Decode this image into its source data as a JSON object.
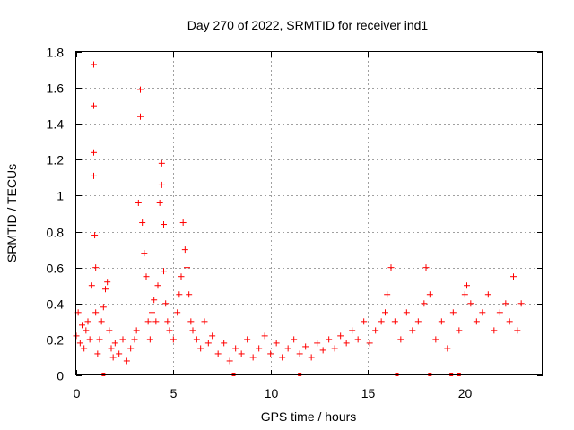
{
  "chart_data": {
    "type": "scatter",
    "title": "Day 270 of 2022, SRMTID for receiver ind1",
    "xlabel": "GPS time / hours",
    "ylabel": "SRMTID / TECUs",
    "xlim": [
      0,
      24
    ],
    "ylim": [
      0,
      1.8
    ],
    "xticks": [
      0,
      5,
      10,
      15,
      20
    ],
    "xtick_labels": [
      "0",
      "5",
      "10",
      "15",
      "20"
    ],
    "yticks": [
      0,
      0.2,
      0.4,
      0.6,
      0.8,
      1,
      1.2,
      1.4,
      1.6,
      1.8
    ],
    "ytick_labels": [
      "0",
      "0.2",
      "0.4",
      "0.6",
      "0.8",
      "1",
      "1.2",
      "1.4",
      "1.6",
      "1.8"
    ],
    "grid": true,
    "marker": "+",
    "color": "#ff0000",
    "series": [
      {
        "name": "SRMTID",
        "x": [
          0.0,
          0.1,
          0.2,
          0.3,
          0.4,
          0.5,
          0.6,
          0.7,
          0.8,
          0.9,
          0.9,
          0.9,
          0.9,
          0.95,
          1.0,
          1.0,
          1.1,
          1.2,
          1.3,
          1.4,
          1.5,
          1.6,
          1.7,
          1.8,
          1.9,
          2.0,
          2.2,
          2.4,
          2.6,
          2.8,
          3.0,
          3.1,
          3.2,
          3.3,
          3.3,
          3.4,
          3.5,
          3.6,
          3.7,
          3.8,
          3.9,
          4.0,
          4.1,
          4.2,
          4.3,
          4.4,
          4.4,
          4.5,
          4.5,
          4.6,
          4.7,
          4.8,
          5.0,
          5.2,
          5.3,
          5.4,
          5.5,
          5.6,
          5.7,
          5.8,
          5.9,
          6.0,
          6.2,
          6.4,
          6.6,
          6.8,
          7.0,
          7.3,
          7.6,
          7.9,
          8.2,
          8.5,
          8.8,
          9.1,
          9.4,
          9.7,
          10.0,
          10.3,
          10.6,
          10.9,
          11.2,
          11.5,
          11.8,
          12.1,
          12.4,
          12.7,
          13.0,
          13.3,
          13.6,
          13.9,
          14.2,
          14.5,
          14.8,
          15.1,
          15.4,
          15.7,
          15.9,
          16.0,
          16.2,
          16.4,
          16.7,
          17.0,
          17.3,
          17.6,
          17.9,
          18.0,
          18.2,
          18.5,
          18.8,
          19.1,
          19.4,
          19.7,
          20.0,
          20.1,
          20.3,
          20.6,
          20.9,
          21.2,
          21.5,
          21.8,
          22.1,
          22.3,
          22.5,
          22.7,
          22.9
        ],
        "y": [
          0.22,
          0.35,
          0.18,
          0.28,
          0.15,
          0.25,
          0.3,
          0.2,
          0.5,
          1.73,
          1.5,
          1.24,
          1.11,
          0.78,
          0.6,
          0.35,
          0.12,
          0.2,
          0.3,
          0.38,
          0.48,
          0.52,
          0.25,
          0.15,
          0.1,
          0.18,
          0.12,
          0.2,
          0.08,
          0.15,
          0.2,
          0.25,
          0.96,
          1.44,
          1.59,
          0.85,
          0.68,
          0.55,
          0.3,
          0.2,
          0.35,
          0.42,
          0.3,
          0.5,
          0.96,
          1.18,
          1.06,
          0.84,
          0.58,
          0.4,
          0.3,
          0.25,
          0.2,
          0.35,
          0.45,
          0.55,
          0.85,
          0.7,
          0.6,
          0.45,
          0.3,
          0.25,
          0.2,
          0.15,
          0.3,
          0.18,
          0.22,
          0.12,
          0.18,
          0.08,
          0.15,
          0.12,
          0.2,
          0.1,
          0.15,
          0.22,
          0.12,
          0.18,
          0.1,
          0.15,
          0.2,
          0.12,
          0.16,
          0.1,
          0.18,
          0.14,
          0.2,
          0.15,
          0.22,
          0.18,
          0.25,
          0.2,
          0.3,
          0.18,
          0.25,
          0.3,
          0.35,
          0.45,
          0.6,
          0.3,
          0.2,
          0.35,
          0.25,
          0.3,
          0.4,
          0.6,
          0.45,
          0.2,
          0.3,
          0.15,
          0.35,
          0.25,
          0.45,
          0.5,
          0.4,
          0.3,
          0.35,
          0.45,
          0.25,
          0.35,
          0.4,
          0.3,
          0.55,
          0.25,
          0.4
        ]
      }
    ],
    "zero_markers_x": [
      1.4,
      8.1,
      11.5,
      16.5,
      18.2,
      19.3,
      19.7
    ]
  }
}
